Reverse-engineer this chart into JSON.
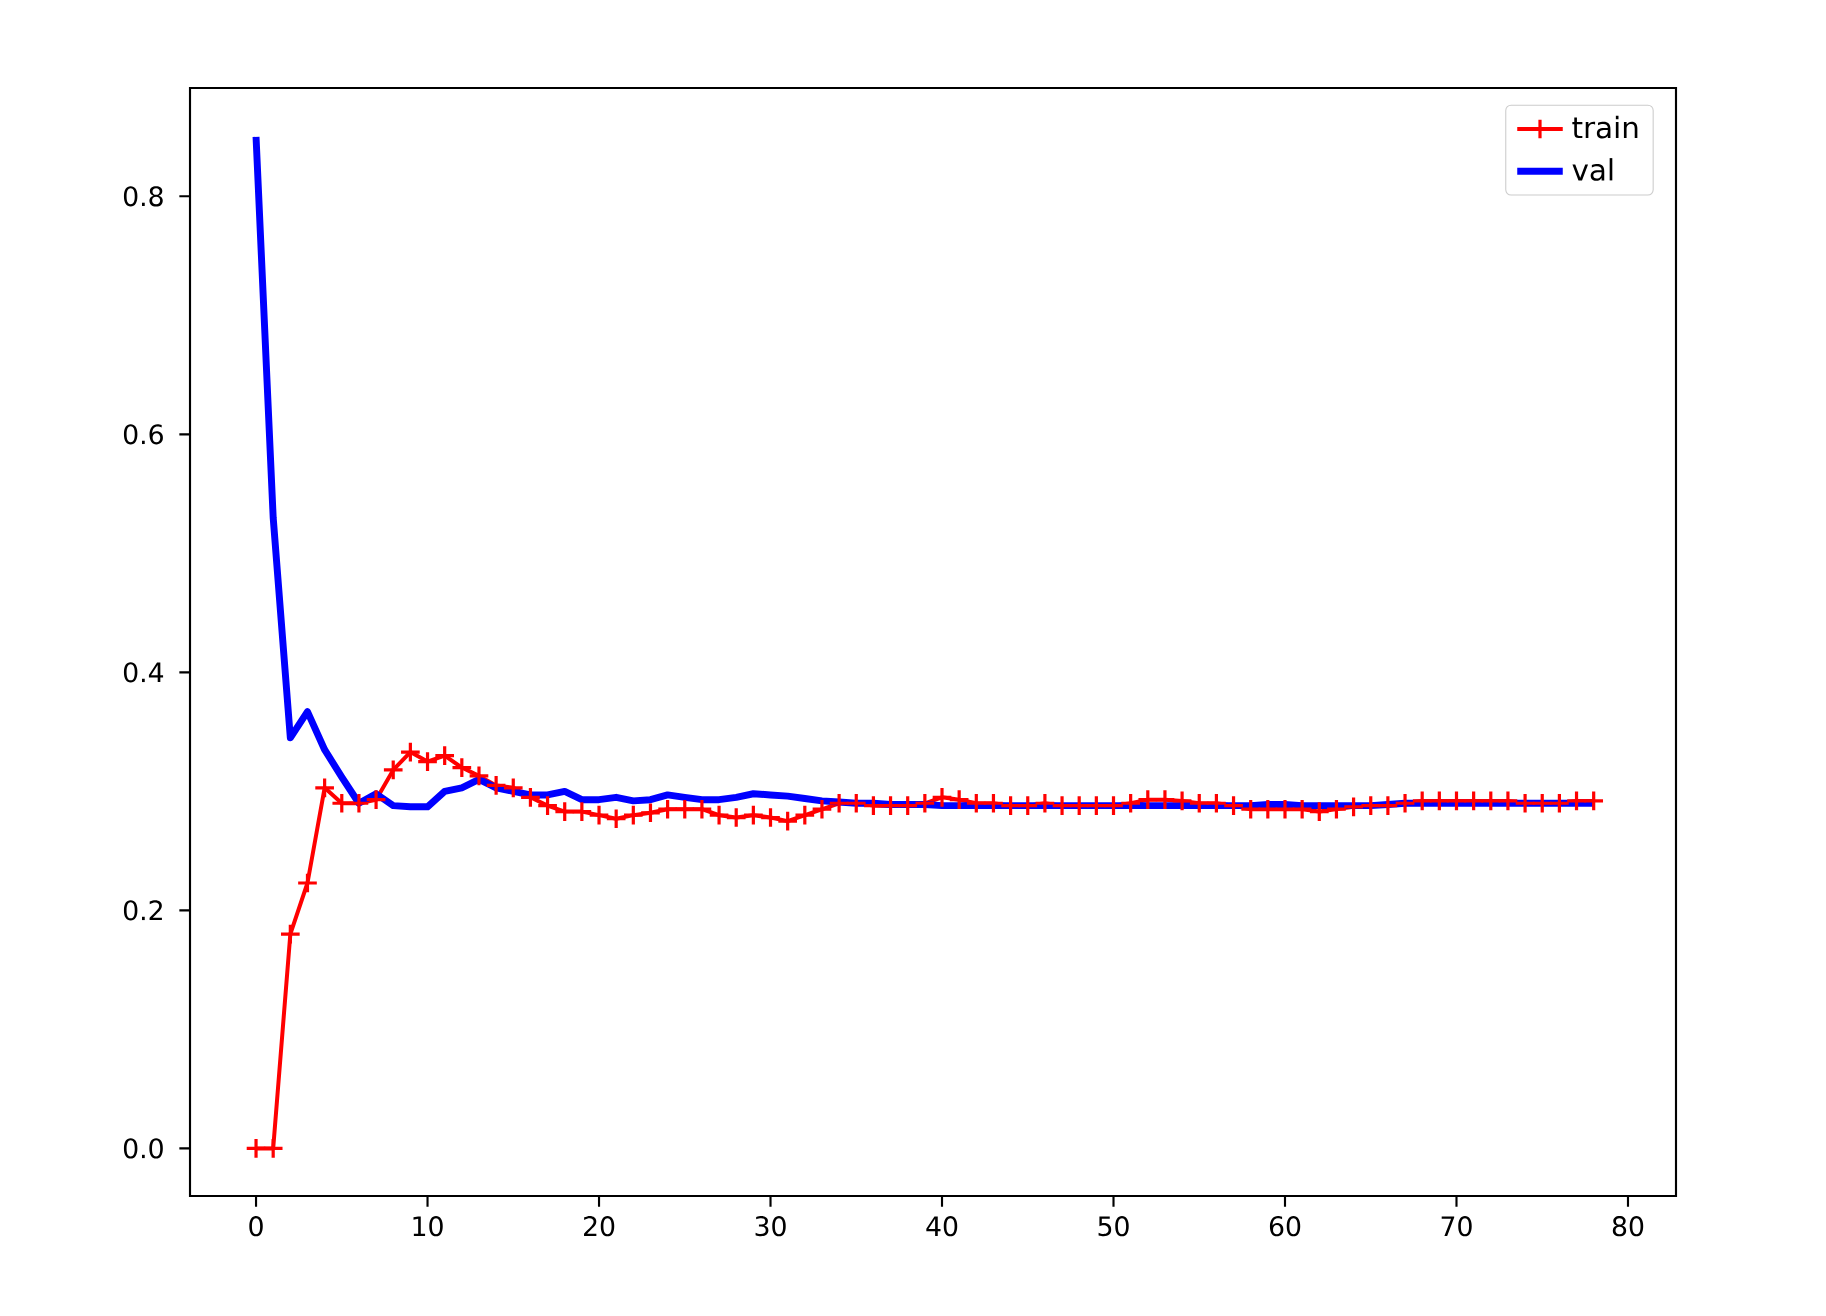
{
  "chart_data": {
    "type": "line",
    "xlim": [
      -3.85,
      82.8
    ],
    "ylim": [
      -0.04,
      0.891
    ],
    "xticks": [
      0,
      10,
      20,
      30,
      40,
      50,
      60,
      70,
      80
    ],
    "yticks": [
      {
        "value": 0,
        "label": "0.0"
      },
      {
        "value": 0.2,
        "label": "0.2"
      },
      {
        "value": 0.4,
        "label": "0.4"
      },
      {
        "value": 0.6,
        "label": "0.6"
      },
      {
        "value": 0.8,
        "label": "0.8"
      }
    ],
    "legend": "top right",
    "grid": false,
    "x": [
      0,
      1,
      2,
      3,
      4,
      5,
      6,
      7,
      8,
      9,
      10,
      11,
      12,
      13,
      14,
      15,
      16,
      17,
      18,
      19,
      20,
      21,
      22,
      23,
      24,
      25,
      26,
      27,
      28,
      29,
      30,
      31,
      32,
      33,
      34,
      35,
      36,
      37,
      38,
      39,
      40,
      41,
      42,
      43,
      44,
      45,
      46,
      47,
      48,
      49,
      50,
      51,
      52,
      53,
      54,
      55,
      56,
      57,
      58,
      59,
      60,
      61,
      62,
      63,
      64,
      65,
      66,
      67,
      68,
      69,
      70,
      71,
      72,
      73,
      74,
      75,
      76,
      77,
      78
    ],
    "series": [
      {
        "name": "train",
        "color": "#ff0000",
        "marker": "cross",
        "line_style": "solid",
        "values": [
          0.0,
          0.0,
          0.18,
          0.223,
          0.303,
          0.29,
          0.29,
          0.293,
          0.318,
          0.333,
          0.325,
          0.33,
          0.32,
          0.313,
          0.305,
          0.303,
          0.295,
          0.288,
          0.283,
          0.283,
          0.28,
          0.277,
          0.28,
          0.282,
          0.285,
          0.285,
          0.285,
          0.28,
          0.278,
          0.28,
          0.278,
          0.275,
          0.28,
          0.285,
          0.29,
          0.29,
          0.288,
          0.288,
          0.288,
          0.29,
          0.295,
          0.293,
          0.29,
          0.29,
          0.288,
          0.288,
          0.29,
          0.288,
          0.288,
          0.288,
          0.288,
          0.29,
          0.293,
          0.293,
          0.292,
          0.29,
          0.29,
          0.288,
          0.285,
          0.285,
          0.285,
          0.285,
          0.283,
          0.285,
          0.287,
          0.288,
          0.288,
          0.29,
          0.292,
          0.292,
          0.292,
          0.292,
          0.292,
          0.292,
          0.29,
          0.29,
          0.29,
          0.292,
          0.292
        ]
      },
      {
        "name": "val",
        "color": "#0000ff",
        "marker": "none",
        "line_style": "solid",
        "values": [
          0.85,
          0.53,
          0.345,
          0.367,
          0.335,
          0.312,
          0.29,
          0.298,
          0.288,
          0.287,
          0.287,
          0.3,
          0.303,
          0.31,
          0.303,
          0.3,
          0.297,
          0.297,
          0.3,
          0.293,
          0.293,
          0.295,
          0.292,
          0.293,
          0.297,
          0.295,
          0.293,
          0.293,
          0.295,
          0.298,
          0.297,
          0.296,
          0.294,
          0.292,
          0.291,
          0.29,
          0.29,
          0.289,
          0.289,
          0.289,
          0.288,
          0.288,
          0.288,
          0.288,
          0.288,
          0.288,
          0.288,
          0.288,
          0.288,
          0.288,
          0.288,
          0.288,
          0.288,
          0.288,
          0.288,
          0.288,
          0.288,
          0.288,
          0.288,
          0.289,
          0.289,
          0.288,
          0.288,
          0.288,
          0.288,
          0.288,
          0.289,
          0.29,
          0.29,
          0.29,
          0.29,
          0.29,
          0.29,
          0.29,
          0.29,
          0.29,
          0.29,
          0.29,
          0.29
        ]
      }
    ]
  }
}
